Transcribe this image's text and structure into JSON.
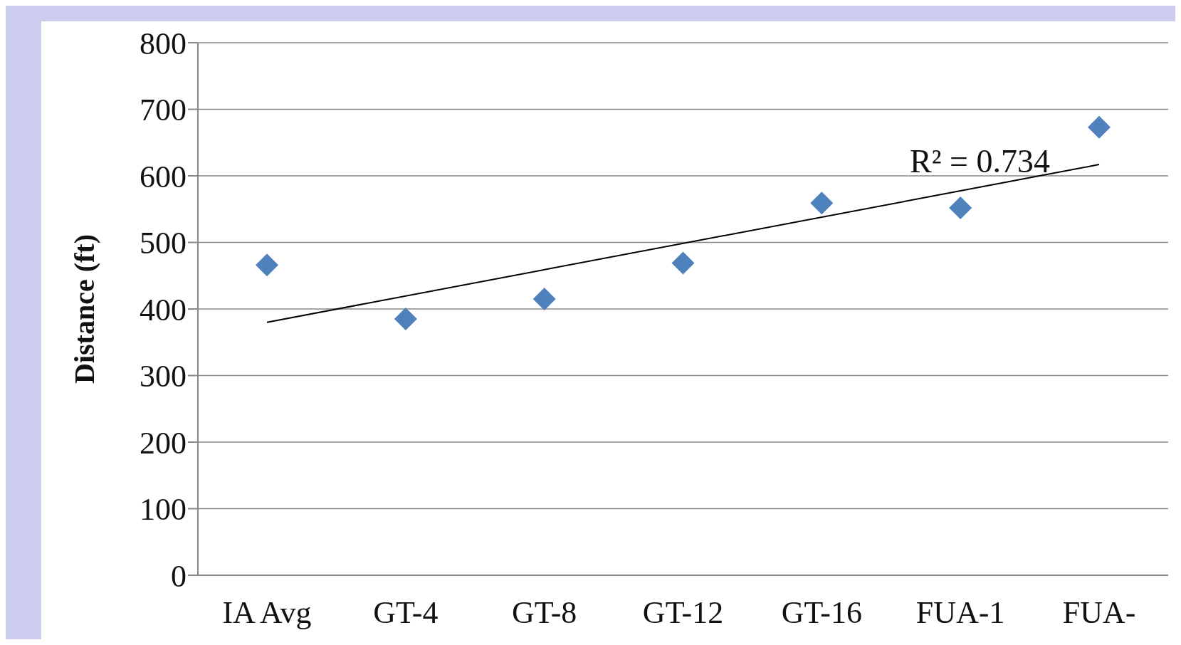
{
  "chart_data": {
    "type": "scatter",
    "ylabel": "Distance (ft)",
    "categories": [
      "IA  Avg",
      "GT-4",
      "GT-8",
      "GT-12",
      "GT-16",
      "FUA-1",
      "FUA-"
    ],
    "series": [
      {
        "color": "#4f81bd",
        "marker": "diamond",
        "values": [
          466,
          385,
          415,
          469,
          559,
          552,
          673
        ]
      },
      {
        "type": "line",
        "color": "#000000",
        "marker": "none",
        "x": [
          "IA  Avg",
          "FUA-"
        ],
        "values": [
          380,
          617
        ]
      }
    ],
    "ylim": [
      0,
      800
    ],
    "yticks": [
      0,
      100,
      200,
      300,
      400,
      500,
      600,
      700,
      800
    ],
    "grid": "y",
    "legend": false,
    "annotations": [
      "R² = 0.734"
    ]
  }
}
